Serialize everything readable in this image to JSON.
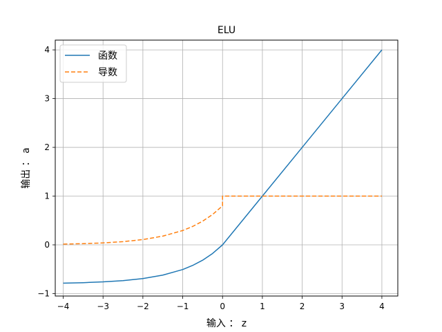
{
  "chart_data": {
    "type": "line",
    "title": "ELU",
    "xlabel": "输入 ： z",
    "ylabel": "输出 ： a",
    "xlim": [
      -4.2,
      4.4
    ],
    "ylim": [
      -1.05,
      4.2
    ],
    "xticks": [
      -4,
      -3,
      -2,
      -1,
      0,
      1,
      2,
      3,
      4
    ],
    "yticks": [
      -1,
      0,
      1,
      2,
      3,
      4
    ],
    "xtick_labels": [
      "−4",
      "−3",
      "−2",
      "−1",
      "0",
      "1",
      "2",
      "3",
      "4"
    ],
    "ytick_labels": [
      "−1",
      "0",
      "1",
      "2",
      "3",
      "4"
    ],
    "grid": true,
    "legend_position": "top-left",
    "alpha": 0.8,
    "series": [
      {
        "name": "函数",
        "color": "#1f77b4",
        "dash": "solid",
        "x": [
          -4,
          -3.5,
          -3,
          -2.5,
          -2,
          -1.5,
          -1,
          -0.75,
          -0.5,
          -0.25,
          0,
          1,
          2,
          3,
          4
        ],
        "y": [
          -0.785,
          -0.776,
          -0.76,
          -0.734,
          -0.692,
          -0.621,
          -0.506,
          -0.422,
          -0.315,
          -0.177,
          0,
          1,
          2,
          3,
          4
        ]
      },
      {
        "name": "导数",
        "color": "#ff7f0e",
        "dash": "dashed",
        "x": [
          -4,
          -3.5,
          -3,
          -2.5,
          -2,
          -1.5,
          -1,
          -0.75,
          -0.5,
          -0.25,
          0,
          0,
          1,
          2,
          3,
          4
        ],
        "y": [
          0.015,
          0.024,
          0.04,
          0.066,
          0.108,
          0.179,
          0.294,
          0.378,
          0.485,
          0.623,
          0.8,
          1,
          1,
          1,
          1,
          1
        ]
      }
    ]
  }
}
